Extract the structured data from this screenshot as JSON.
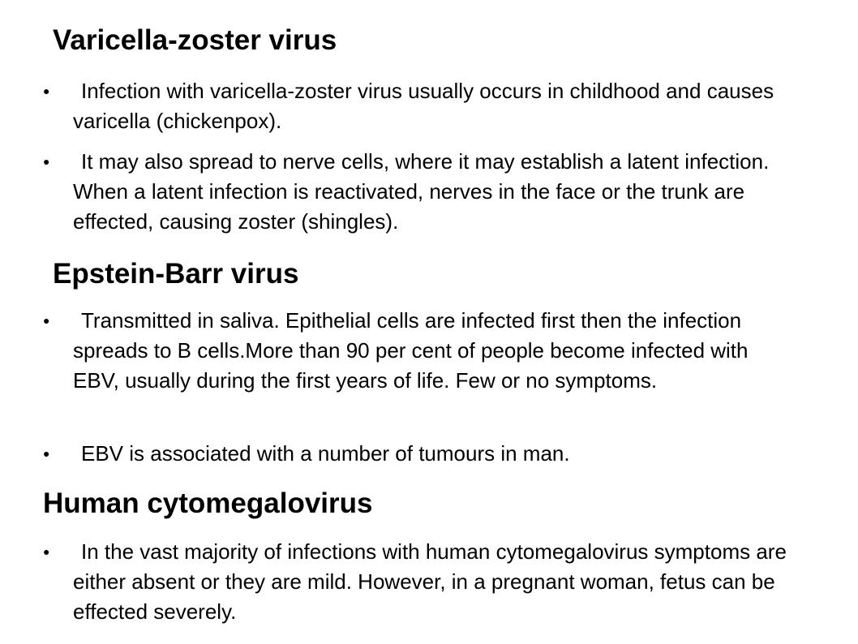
{
  "sections": [
    {
      "heading": "Varicella-zoster virus",
      "bullets": [
        "Infection with varicella-zoster virus usually occurs in childhood and causes varicella (chickenpox).",
        "It may also spread to nerve cells, where it may establish a latent infection. When a latent infection is reactivated, nerves in the face or the trunk are effected, causing zoster (shingles)."
      ]
    },
    {
      "heading": "Epstein-Barr virus",
      "bullets": [
        "Transmitted in saliva. Epithelial cells are infected first then the infection spreads to B cells.More than 90 per cent of people become infected with EBV, usually during the first years of life. Few or no symptoms.",
        "EBV is associated with a number of tumours in man."
      ]
    },
    {
      "heading": "Human cytomegalovirus",
      "bullets": [
        "In the vast majority of infections with human cytomegalovirus symptoms are either absent or they are mild. However, in a pregnant woman, fetus can be effected severely."
      ]
    }
  ],
  "bullet_glyph": "●"
}
